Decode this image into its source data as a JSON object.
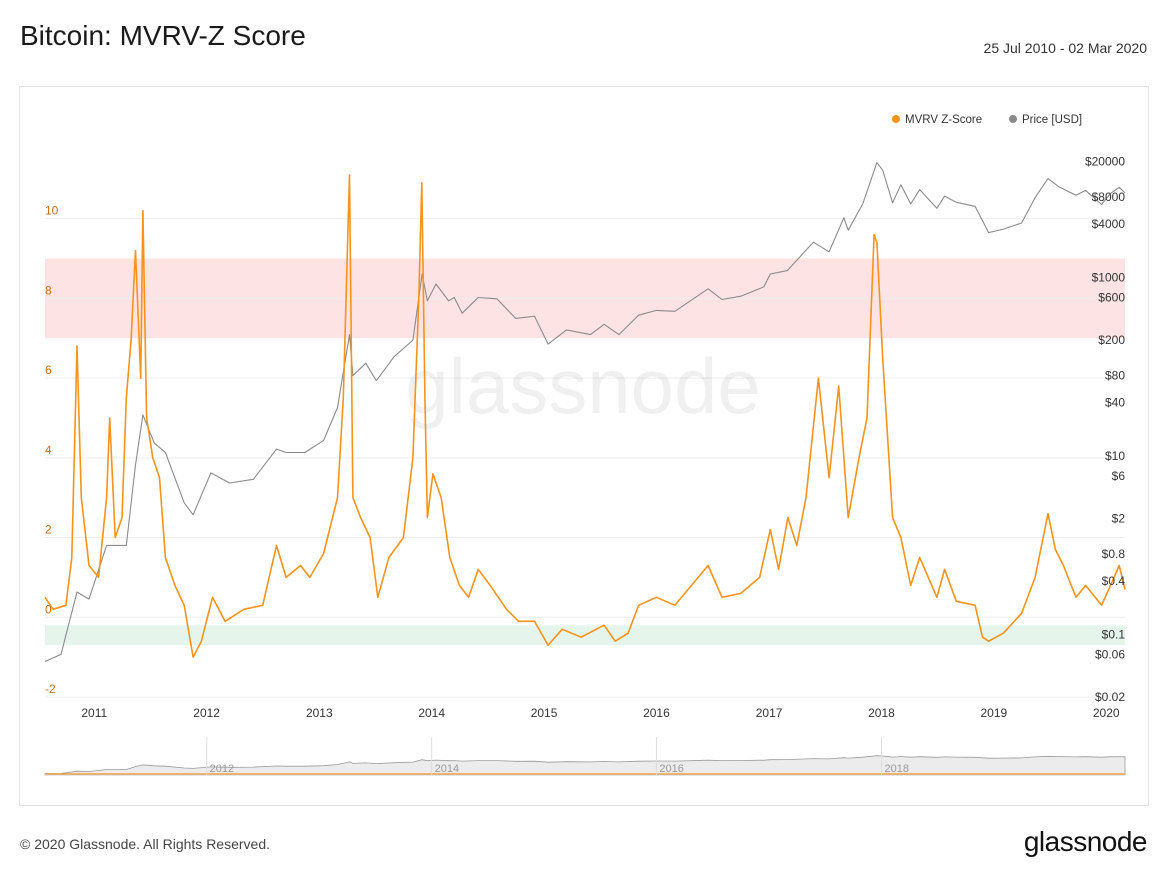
{
  "header": {
    "title": "Bitcoin: MVRV-Z Score",
    "date_range": "25 Jul 2010 - 02 Mar 2020"
  },
  "footer": {
    "copyright": "© 2020 Glassnode. All Rights Reserved.",
    "brand": "glassnode"
  },
  "watermark": "glassnode",
  "colors": {
    "mvrv": "#f7931a",
    "price": "#8a8a8a",
    "red_zone": "#fde3e3",
    "green_zone": "#e6f5ec",
    "left_axis": "#c8711b",
    "grid": "#eeeeee"
  },
  "chart_data": {
    "type": "line",
    "title": "Bitcoin: MVRV-Z Score",
    "x_range": [
      "2010-07-25",
      "2020-03-02"
    ],
    "x_ticks": [
      "2011",
      "2012",
      "2013",
      "2014",
      "2015",
      "2016",
      "2017",
      "2018",
      "2019",
      "2020"
    ],
    "left_axis": {
      "ticks": [
        "10",
        "8",
        "6",
        "4",
        "2",
        "0",
        "-2"
      ],
      "range": [
        -2,
        12.5
      ]
    },
    "right_axis": {
      "scale": "log",
      "ticks": [
        "$20000",
        "$8000",
        "$4000",
        "$1000",
        "$600",
        "$200",
        "$80",
        "$40",
        "$10",
        "$6",
        "$2",
        "$0.8",
        "$0.4",
        "$0.1",
        "$0.06",
        "$0.02"
      ],
      "range": [
        0.02,
        60000
      ]
    },
    "bands": [
      {
        "name": "red",
        "from": 7,
        "to": 9
      },
      {
        "name": "green",
        "from": -0.7,
        "to": -0.2
      }
    ],
    "legend": {
      "placement": "top-right"
    },
    "series": [
      {
        "name": "MVRV Z-Score",
        "axis": "left",
        "points": [
          [
            "2010-07-25",
            0.5
          ],
          [
            "2010-08-20",
            0.2
          ],
          [
            "2010-10-01",
            0.3
          ],
          [
            "2010-10-20",
            1.5
          ],
          [
            "2010-11-06",
            6.8
          ],
          [
            "2010-11-20",
            3.0
          ],
          [
            "2010-12-15",
            1.3
          ],
          [
            "2011-01-15",
            1.0
          ],
          [
            "2011-02-10",
            3.0
          ],
          [
            "2011-02-20",
            5.0
          ],
          [
            "2011-03-10",
            2.0
          ],
          [
            "2011-04-01",
            2.5
          ],
          [
            "2011-04-15",
            5.5
          ],
          [
            "2011-05-01",
            7.0
          ],
          [
            "2011-05-15",
            9.2
          ],
          [
            "2011-06-01",
            6.0
          ],
          [
            "2011-06-08",
            10.2
          ],
          [
            "2011-06-20",
            5.0
          ],
          [
            "2011-07-10",
            4.0
          ],
          [
            "2011-08-01",
            3.5
          ],
          [
            "2011-08-20",
            1.5
          ],
          [
            "2011-09-20",
            0.8
          ],
          [
            "2011-10-20",
            0.3
          ],
          [
            "2011-11-18",
            -1.0
          ],
          [
            "2011-12-15",
            -0.6
          ],
          [
            "2012-01-20",
            0.5
          ],
          [
            "2012-03-01",
            -0.1
          ],
          [
            "2012-05-01",
            0.2
          ],
          [
            "2012-07-01",
            0.3
          ],
          [
            "2012-08-15",
            1.8
          ],
          [
            "2012-09-15",
            1.0
          ],
          [
            "2012-11-01",
            1.3
          ],
          [
            "2012-12-01",
            1.0
          ],
          [
            "2013-01-15",
            1.6
          ],
          [
            "2013-03-01",
            3.0
          ],
          [
            "2013-03-20",
            5.5
          ],
          [
            "2013-04-09",
            11.1
          ],
          [
            "2013-04-20",
            3.0
          ],
          [
            "2013-05-15",
            2.5
          ],
          [
            "2013-06-15",
            2.0
          ],
          [
            "2013-07-10",
            0.5
          ],
          [
            "2013-08-15",
            1.5
          ],
          [
            "2013-10-01",
            2.0
          ],
          [
            "2013-11-01",
            4.0
          ],
          [
            "2013-11-20",
            8.0
          ],
          [
            "2013-11-30",
            10.9
          ],
          [
            "2013-12-10",
            5.5
          ],
          [
            "2013-12-18",
            2.5
          ],
          [
            "2014-01-05",
            3.6
          ],
          [
            "2014-02-01",
            3.0
          ],
          [
            "2014-03-01",
            1.5
          ],
          [
            "2014-04-01",
            0.8
          ],
          [
            "2014-05-01",
            0.5
          ],
          [
            "2014-06-01",
            1.2
          ],
          [
            "2014-07-10",
            0.8
          ],
          [
            "2014-09-01",
            0.2
          ],
          [
            "2014-10-10",
            -0.1
          ],
          [
            "2014-12-01",
            -0.1
          ],
          [
            "2015-01-14",
            -0.7
          ],
          [
            "2015-03-01",
            -0.3
          ],
          [
            "2015-05-01",
            -0.5
          ],
          [
            "2015-07-15",
            -0.2
          ],
          [
            "2015-08-20",
            -0.6
          ],
          [
            "2015-10-01",
            -0.4
          ],
          [
            "2015-11-04",
            0.3
          ],
          [
            "2016-01-01",
            0.5
          ],
          [
            "2016-03-01",
            0.3
          ],
          [
            "2016-06-17",
            1.3
          ],
          [
            "2016-08-01",
            0.5
          ],
          [
            "2016-10-01",
            0.6
          ],
          [
            "2016-12-01",
            1.0
          ],
          [
            "2017-01-05",
            2.2
          ],
          [
            "2017-02-01",
            1.2
          ],
          [
            "2017-03-03",
            2.5
          ],
          [
            "2017-04-01",
            1.8
          ],
          [
            "2017-05-01",
            3.0
          ],
          [
            "2017-06-10",
            6.0
          ],
          [
            "2017-07-15",
            3.5
          ],
          [
            "2017-08-15",
            5.8
          ],
          [
            "2017-09-15",
            2.5
          ],
          [
            "2017-10-20",
            4.0
          ],
          [
            "2017-11-15",
            5.0
          ],
          [
            "2017-12-08",
            9.6
          ],
          [
            "2017-12-17",
            9.4
          ],
          [
            "2018-01-05",
            6.5
          ],
          [
            "2018-02-06",
            2.5
          ],
          [
            "2018-03-05",
            2.0
          ],
          [
            "2018-04-06",
            0.8
          ],
          [
            "2018-05-05",
            1.5
          ],
          [
            "2018-06-30",
            0.5
          ],
          [
            "2018-07-25",
            1.2
          ],
          [
            "2018-09-01",
            0.4
          ],
          [
            "2018-11-01",
            0.3
          ],
          [
            "2018-11-25",
            -0.5
          ],
          [
            "2018-12-15",
            -0.6
          ],
          [
            "2019-02-01",
            -0.4
          ],
          [
            "2019-04-01",
            0.1
          ],
          [
            "2019-05-15",
            1.0
          ],
          [
            "2019-06-26",
            2.6
          ],
          [
            "2019-07-20",
            1.7
          ],
          [
            "2019-08-15",
            1.3
          ],
          [
            "2019-09-25",
            0.5
          ],
          [
            "2019-10-26",
            0.8
          ],
          [
            "2019-12-17",
            0.3
          ],
          [
            "2020-01-15",
            0.8
          ],
          [
            "2020-02-12",
            1.3
          ],
          [
            "2020-03-02",
            0.7
          ]
        ]
      },
      {
        "name": "Price [USD]",
        "axis": "right",
        "points": [
          [
            "2010-07-25",
            0.05
          ],
          [
            "2010-09-15",
            0.06
          ],
          [
            "2010-11-06",
            0.3
          ],
          [
            "2010-12-15",
            0.25
          ],
          [
            "2011-02-10",
            1.0
          ],
          [
            "2011-04-15",
            1.0
          ],
          [
            "2011-05-15",
            8.0
          ],
          [
            "2011-06-08",
            29
          ],
          [
            "2011-07-15",
            14
          ],
          [
            "2011-08-20",
            11
          ],
          [
            "2011-10-20",
            3.0
          ],
          [
            "2011-11-18",
            2.2
          ],
          [
            "2012-01-15",
            6.5
          ],
          [
            "2012-03-15",
            5.0
          ],
          [
            "2012-06-01",
            5.5
          ],
          [
            "2012-08-15",
            12
          ],
          [
            "2012-09-15",
            11
          ],
          [
            "2012-11-15",
            11
          ],
          [
            "2013-01-15",
            15
          ],
          [
            "2013-03-01",
            35
          ],
          [
            "2013-04-09",
            230
          ],
          [
            "2013-04-20",
            80
          ],
          [
            "2013-06-01",
            110
          ],
          [
            "2013-07-05",
            70
          ],
          [
            "2013-09-01",
            130
          ],
          [
            "2013-11-01",
            200
          ],
          [
            "2013-12-01",
            1100
          ],
          [
            "2013-12-18",
            550
          ],
          [
            "2014-01-15",
            850
          ],
          [
            "2014-02-25",
            550
          ],
          [
            "2014-03-15",
            600
          ],
          [
            "2014-04-10",
            400
          ],
          [
            "2014-06-01",
            600
          ],
          [
            "2014-08-01",
            580
          ],
          [
            "2014-10-01",
            350
          ],
          [
            "2014-12-01",
            370
          ],
          [
            "2015-01-14",
            180
          ],
          [
            "2015-03-15",
            260
          ],
          [
            "2015-06-01",
            230
          ],
          [
            "2015-07-15",
            300
          ],
          [
            "2015-09-01",
            230
          ],
          [
            "2015-11-04",
            380
          ],
          [
            "2016-01-01",
            430
          ],
          [
            "2016-03-01",
            420
          ],
          [
            "2016-06-17",
            750
          ],
          [
            "2016-08-01",
            570
          ],
          [
            "2016-10-01",
            620
          ],
          [
            "2016-12-15",
            790
          ],
          [
            "2017-01-05",
            1100
          ],
          [
            "2017-03-01",
            1200
          ],
          [
            "2017-05-25",
            2500
          ],
          [
            "2017-07-15",
            1950
          ],
          [
            "2017-09-01",
            4700
          ],
          [
            "2017-09-15",
            3400
          ],
          [
            "2017-11-01",
            6700
          ],
          [
            "2017-12-17",
            19500
          ],
          [
            "2018-01-05",
            16000
          ],
          [
            "2018-02-06",
            6900
          ],
          [
            "2018-03-05",
            11000
          ],
          [
            "2018-04-06",
            6700
          ],
          [
            "2018-05-05",
            9700
          ],
          [
            "2018-06-30",
            6000
          ],
          [
            "2018-07-25",
            8200
          ],
          [
            "2018-09-01",
            7000
          ],
          [
            "2018-11-01",
            6300
          ],
          [
            "2018-12-15",
            3200
          ],
          [
            "2019-02-01",
            3500
          ],
          [
            "2019-04-01",
            4100
          ],
          [
            "2019-05-15",
            7900
          ],
          [
            "2019-06-26",
            12900
          ],
          [
            "2019-08-01",
            10400
          ],
          [
            "2019-09-25",
            8400
          ],
          [
            "2019-10-26",
            9500
          ],
          [
            "2019-12-17",
            6600
          ],
          [
            "2020-01-15",
            8800
          ],
          [
            "2020-02-12",
            10300
          ],
          [
            "2020-03-02",
            8900
          ]
        ]
      }
    ]
  }
}
